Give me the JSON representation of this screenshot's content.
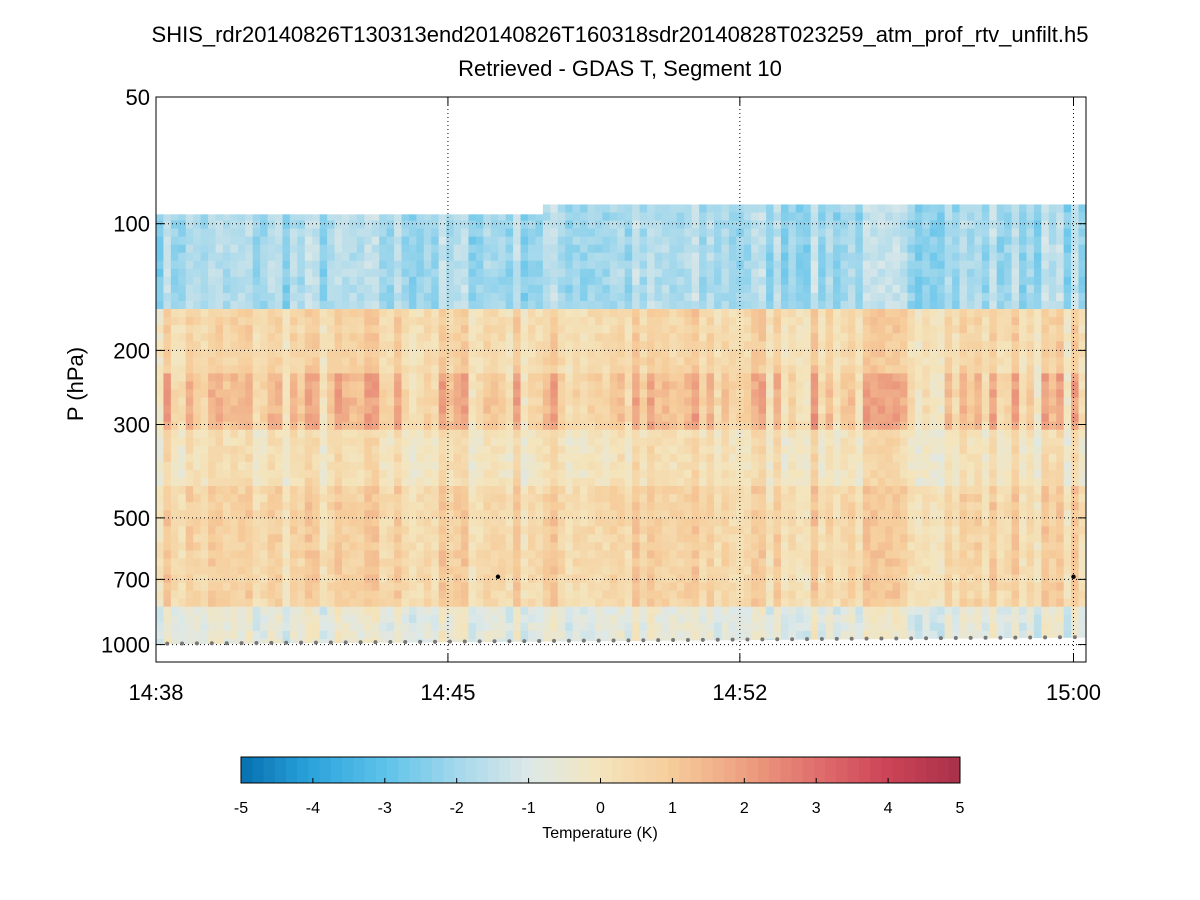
{
  "chart_data": {
    "type": "heatmap",
    "title": "SHIS_rdr20140826T130313end20140826T160318sdr20140828T023259_atm_prof_rtv_unfilt.h5",
    "subtitle": "Retrieved - GDAS T, Segment 10",
    "xlabel": "",
    "ylabel": "P (hPa)",
    "yscale": "log",
    "yreverse": true,
    "ylim": [
      50,
      1100
    ],
    "xlim_minutes": [
      878,
      900.3
    ],
    "x_tick_labels": [
      "14:38",
      "14:45",
      "14:52",
      "15:00"
    ],
    "x_tick_minutes": [
      878,
      885,
      892,
      900
    ],
    "y_ticks": [
      50,
      100,
      200,
      300,
      500,
      700,
      1000
    ],
    "grid": true,
    "colorbar": {
      "label": "Temperature (K)",
      "min": -5,
      "max": 5,
      "ticks": [
        -5,
        -4,
        -3,
        -2,
        -1,
        0,
        1,
        2,
        3,
        4,
        5
      ],
      "colors": [
        "#0570b0",
        "#2da4dc",
        "#5dc2ea",
        "#a3d8ec",
        "#dde8e8",
        "#f4e5bd",
        "#f6cc9a",
        "#eda081",
        "#e06f6c",
        "#cc4457",
        "#a8304a"
      ]
    },
    "layers": [
      {
        "p_top": 88,
        "p_bottom": 160,
        "value": -1.9
      },
      {
        "p_top": 160,
        "p_bottom": 230,
        "value": 0.5
      },
      {
        "p_top": 230,
        "p_bottom": 310,
        "value": 1.0
      },
      {
        "p_top": 310,
        "p_bottom": 420,
        "value": 0.1
      },
      {
        "p_top": 420,
        "p_bottom": 800,
        "value": 0.6
      },
      {
        "p_top": 800,
        "p_bottom": 1000,
        "value": -0.7
      }
    ],
    "surface_pressure": {
      "start_hpa": 995,
      "end_hpa": 960
    },
    "marker_points": [
      {
        "minute": 886.2,
        "p": 690
      },
      {
        "minute": 900.0,
        "p": 690
      }
    ]
  }
}
